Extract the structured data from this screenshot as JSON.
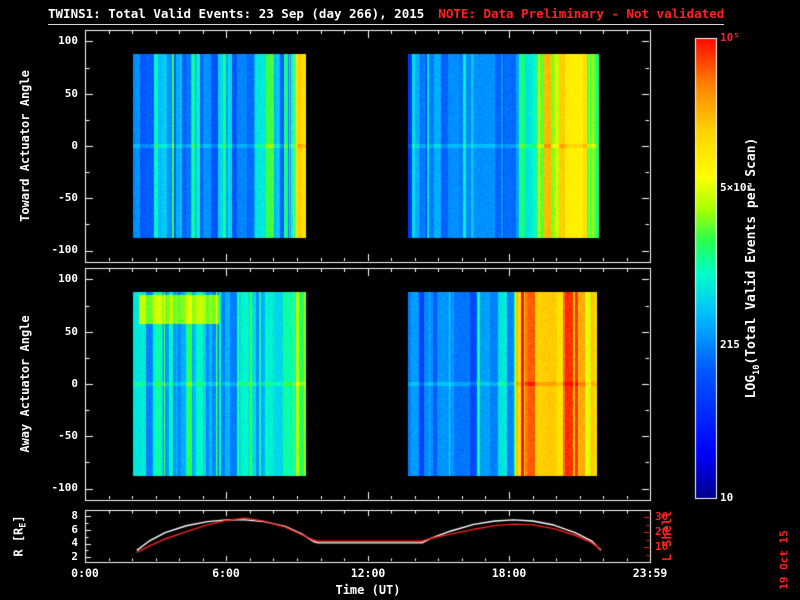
{
  "header": {
    "title": "TWINS1: Total Valid Events: 23 Sep (day 266), 2015",
    "note": "NOTE: Data Preliminary - Not validated",
    "note_color": "#ff2020"
  },
  "axes": {
    "toward": {
      "label": "Toward Actuator Angle",
      "ticks": [
        "100",
        "50",
        "0",
        "-50",
        "-100"
      ]
    },
    "away": {
      "label": "Away Actuator Angle",
      "ticks": [
        "100",
        "50",
        "0",
        "-50",
        "-100"
      ]
    },
    "r": {
      "label_pre": "R [R",
      "label_sub": "E",
      "label_post": "]",
      "ticks": [
        "8",
        "6",
        "4",
        "2"
      ]
    },
    "lshell": {
      "label": "L Shell",
      "ticks": [
        "30",
        "20",
        "10"
      ],
      "color": "#ff2020"
    },
    "x": {
      "label": "Time (UT)",
      "ticks": [
        "0:00",
        "6:00",
        "12:00",
        "18:00",
        "23:59"
      ]
    }
  },
  "colorbar": {
    "title_pre": "LOG",
    "title_sub": "10",
    "title_post": "(Total Valid Events per Scan)",
    "ticks": [
      "10⁵",
      "5×10³",
      "215",
      "10"
    ],
    "top_tick_color": "#ff2020"
  },
  "timestamp": "19 Oct 15",
  "chart_data": [
    {
      "type": "heatmap",
      "name": "toward",
      "ylabel": "Toward Actuator Angle",
      "x_range_hours": [
        0,
        23.9833
      ],
      "y_range_deg": [
        -111,
        111
      ],
      "yticks": [
        -100,
        -50,
        0,
        50,
        100
      ],
      "data_y_extent": [
        -88,
        88
      ],
      "value_log10_range": [
        1,
        5
      ],
      "colormap_stops": [
        [
          0.0,
          [
            0,
            0,
            140
          ]
        ],
        [
          0.1,
          [
            0,
            0,
            255
          ]
        ],
        [
          0.28,
          [
            0,
            90,
            255
          ]
        ],
        [
          0.4,
          [
            0,
            190,
            255
          ]
        ],
        [
          0.49,
          [
            0,
            255,
            200
          ]
        ],
        [
          0.56,
          [
            40,
            255,
            80
          ]
        ],
        [
          0.63,
          [
            170,
            255,
            0
          ]
        ],
        [
          0.7,
          [
            255,
            255,
            0
          ]
        ],
        [
          0.8,
          [
            255,
            210,
            0
          ]
        ],
        [
          0.9,
          [
            255,
            130,
            0
          ]
        ],
        [
          1.0,
          [
            255,
            10,
            0
          ]
        ]
      ],
      "segments": [
        {
          "t_start": 2.05,
          "t_end": 9.4,
          "stripe_noise": 0.45,
          "seed": 11,
          "base_log10": [
            [
              0,
              2.35
            ],
            [
              0.2,
              2.5
            ],
            [
              0.5,
              2.4
            ],
            [
              0.8,
              2.5
            ],
            [
              0.9,
              2.55
            ],
            [
              0.94,
              3.2
            ],
            [
              0.96,
              3.65
            ],
            [
              1,
              3.4
            ]
          ]
        },
        {
          "t_start": 13.7,
          "t_end": 21.8,
          "stripe_noise": 0.42,
          "seed": 29,
          "base_log10": [
            [
              0,
              2.15
            ],
            [
              0.25,
              2.25
            ],
            [
              0.5,
              2.3
            ],
            [
              0.64,
              2.4
            ],
            [
              0.675,
              2.6
            ],
            [
              0.69,
              3.7
            ],
            [
              0.8,
              3.8
            ],
            [
              0.93,
              3.75
            ],
            [
              1,
              3.35
            ]
          ]
        }
      ],
      "features": []
    },
    {
      "type": "heatmap",
      "name": "away",
      "ylabel": "Away Actuator Angle",
      "x_range_hours": [
        0,
        23.9833
      ],
      "y_range_deg": [
        -111,
        111
      ],
      "yticks": [
        -100,
        -50,
        0,
        50,
        100
      ],
      "data_y_extent": [
        -88,
        88
      ],
      "value_log10_range": [
        1,
        5
      ],
      "colormap_stops": [
        [
          0.0,
          [
            0,
            0,
            140
          ]
        ],
        [
          0.1,
          [
            0,
            0,
            255
          ]
        ],
        [
          0.28,
          [
            0,
            90,
            255
          ]
        ],
        [
          0.4,
          [
            0,
            190,
            255
          ]
        ],
        [
          0.49,
          [
            0,
            255,
            200
          ]
        ],
        [
          0.56,
          [
            40,
            255,
            80
          ]
        ],
        [
          0.63,
          [
            170,
            255,
            0
          ]
        ],
        [
          0.7,
          [
            255,
            255,
            0
          ]
        ],
        [
          0.8,
          [
            255,
            210,
            0
          ]
        ],
        [
          0.9,
          [
            255,
            130,
            0
          ]
        ],
        [
          1.0,
          [
            255,
            10,
            0
          ]
        ]
      ],
      "segments": [
        {
          "t_start": 2.05,
          "t_end": 9.4,
          "stripe_noise": 0.42,
          "seed": 53,
          "base_log10": [
            [
              0,
              2.55
            ],
            [
              0.25,
              2.7
            ],
            [
              0.5,
              2.6
            ],
            [
              0.8,
              2.65
            ],
            [
              0.93,
              2.75
            ],
            [
              0.95,
              3.6
            ],
            [
              1,
              3.45
            ]
          ]
        },
        {
          "t_start": 13.7,
          "t_end": 21.75,
          "stripe_noise": 0.4,
          "seed": 71,
          "base_log10": [
            [
              0,
              2.3
            ],
            [
              0.3,
              2.35
            ],
            [
              0.5,
              2.5
            ],
            [
              0.56,
              2.7
            ],
            [
              0.575,
              4.35
            ],
            [
              0.75,
              4.45
            ],
            [
              0.9,
              4.35
            ],
            [
              0.96,
              4.0
            ],
            [
              1,
              3.7
            ]
          ]
        }
      ],
      "features": [
        {
          "t0": 2.3,
          "t1": 5.7,
          "a0": 58,
          "a1": 86,
          "v": 3.5
        }
      ]
    },
    {
      "type": "line",
      "name": "orbit",
      "x_range_hours": [
        0,
        23.9833
      ],
      "left_axis": {
        "label": "R [RE]",
        "range": [
          1.3,
          8.9
        ],
        "ticks": [
          2,
          4,
          6,
          8
        ],
        "color": "#ffffff"
      },
      "right_axis": {
        "label": "L Shell",
        "range": [
          0,
          35
        ],
        "ticks": [
          10,
          20,
          30
        ],
        "color": "#ff2020"
      },
      "series": [
        {
          "name": "R [RE]",
          "color": "#ffffff",
          "axis": "left",
          "points": [
            [
              2.2,
              3.0
            ],
            [
              2.7,
              4.3
            ],
            [
              3.4,
              5.6
            ],
            [
              4.3,
              6.6
            ],
            [
              5.2,
              7.2
            ],
            [
              6.0,
              7.45
            ],
            [
              6.8,
              7.45
            ],
            [
              7.6,
              7.2
            ],
            [
              8.5,
              6.5
            ],
            [
              9.2,
              5.4
            ],
            [
              9.7,
              4.3
            ],
            [
              9.9,
              4.1
            ],
            [
              14.3,
              4.1
            ],
            [
              14.7,
              4.8
            ],
            [
              15.5,
              5.8
            ],
            [
              16.5,
              6.8
            ],
            [
              17.4,
              7.3
            ],
            [
              18.2,
              7.45
            ],
            [
              19.0,
              7.3
            ],
            [
              19.9,
              6.7
            ],
            [
              20.8,
              5.6
            ],
            [
              21.5,
              4.4
            ],
            [
              21.9,
              3.0
            ]
          ]
        },
        {
          "name": "L Shell",
          "color": "#ff2020",
          "axis": "right",
          "points": [
            [
              2.2,
              6.5
            ],
            [
              2.7,
              10.5
            ],
            [
              3.4,
              15.5
            ],
            [
              4.3,
              20.5
            ],
            [
              5.2,
              25
            ],
            [
              6.0,
              28
            ],
            [
              6.8,
              29.5
            ],
            [
              7.6,
              27.5
            ],
            [
              8.5,
              23.5
            ],
            [
              9.2,
              18.5
            ],
            [
              9.7,
              14.8
            ],
            [
              9.9,
              14.0
            ],
            [
              14.3,
              14.0
            ],
            [
              14.7,
              16
            ],
            [
              15.5,
              18.8
            ],
            [
              16.5,
              22
            ],
            [
              17.4,
              24.5
            ],
            [
              18.2,
              25.5
            ],
            [
              19.0,
              25
            ],
            [
              19.9,
              22.5
            ],
            [
              20.8,
              18
            ],
            [
              21.5,
              13
            ],
            [
              21.9,
              8.5
            ]
          ]
        }
      ]
    }
  ]
}
